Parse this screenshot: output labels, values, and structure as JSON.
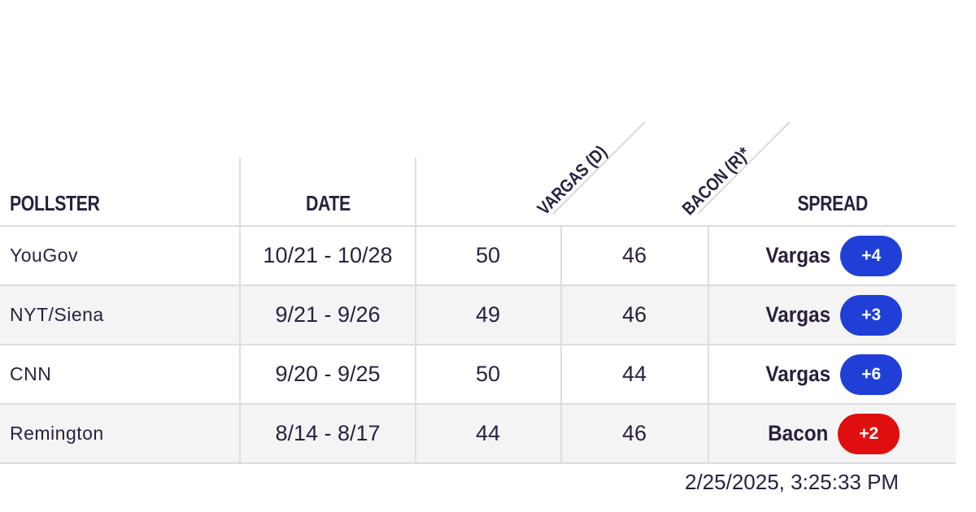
{
  "table": {
    "headers": {
      "pollster": "POLLSTER",
      "date": "DATE",
      "candidate_d": "VARGAS (D)",
      "candidate_r": "BACON (R)*",
      "spread": "SPREAD"
    },
    "rows": [
      {
        "pollster": "YouGov",
        "date": "10/21 - 10/28",
        "vargas": "50",
        "bacon": "46",
        "spread_leader": "Vargas",
        "spread_value": "+4",
        "spread_color": "#1f3fd6"
      },
      {
        "pollster": "NYT/Siena",
        "date": "9/21 - 9/26",
        "vargas": "49",
        "bacon": "46",
        "spread_leader": "Vargas",
        "spread_value": "+3",
        "spread_color": "#1f3fd6"
      },
      {
        "pollster": "CNN",
        "date": "9/20 - 9/25",
        "vargas": "50",
        "bacon": "44",
        "spread_leader": "Vargas",
        "spread_value": "+6",
        "spread_color": "#1f3fd6"
      },
      {
        "pollster": "Remington",
        "date": "8/14 - 8/17",
        "vargas": "44",
        "bacon": "46",
        "spread_leader": "Bacon",
        "spread_value": "+2",
        "spread_color": "#e00f0f"
      }
    ]
  },
  "timestamp": "2/25/2025, 3:25:33 PM",
  "colors": {
    "democrat": "#1f3fd6",
    "republican": "#e00f0f",
    "text": "#2a1f3d"
  }
}
